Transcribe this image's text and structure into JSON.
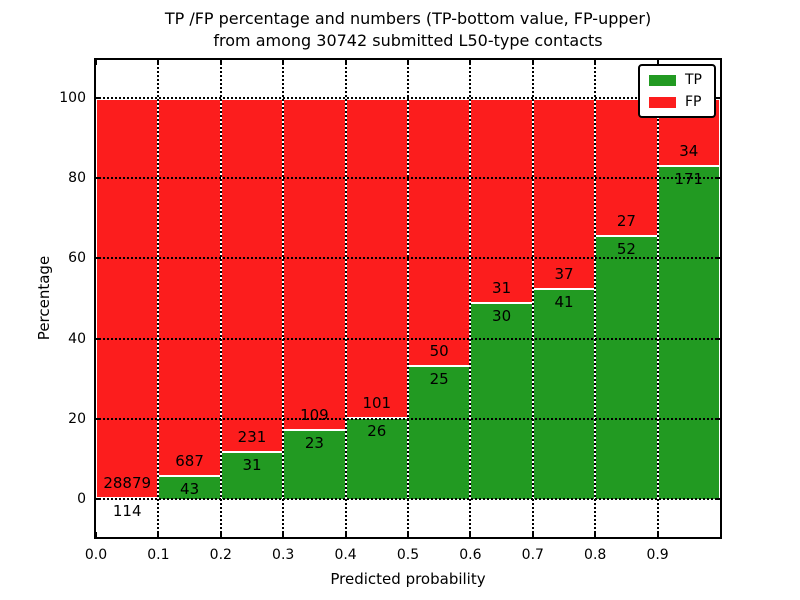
{
  "chart_data": {
    "type": "bar",
    "stacked": true,
    "normalized": "percent",
    "title_line1": "TP /FP percentage and numbers (TP-bottom value, FP-upper)",
    "title_line2": "from among 30742 submitted L50-type contacts",
    "total_submitted_contacts": 30742,
    "xlabel": "Predicted probability",
    "ylabel": "Percentage",
    "xlim": [
      0.0,
      1.0
    ],
    "ylim": [
      -9.5,
      109.5
    ],
    "xticks": [
      "0.0",
      "0.1",
      "0.2",
      "0.3",
      "0.4",
      "0.5",
      "0.6",
      "0.7",
      "0.8",
      "0.9"
    ],
    "yticks": [
      0,
      20,
      40,
      60,
      80,
      100
    ],
    "grid": true,
    "grid_style": "dotted",
    "bin_width": 0.1,
    "categories": [
      "0.0-0.1",
      "0.1-0.2",
      "0.2-0.3",
      "0.3-0.4",
      "0.4-0.5",
      "0.5-0.6",
      "0.6-0.7",
      "0.7-0.8",
      "0.8-0.9",
      "0.9-1.0"
    ],
    "series": [
      {
        "name": "TP",
        "color": "#229a22",
        "values": [
          114,
          43,
          31,
          23,
          26,
          25,
          30,
          41,
          52,
          171
        ]
      },
      {
        "name": "FP",
        "color": "#fc1d1d",
        "values": [
          28879,
          687,
          231,
          109,
          101,
          50,
          31,
          37,
          27,
          34
        ]
      }
    ],
    "tp_percent_of_bin": [
      0.39,
      5.89,
      11.83,
      17.42,
      20.47,
      33.33,
      49.18,
      52.56,
      65.82,
      83.41
    ],
    "legend": {
      "position": "upper right",
      "entries": [
        {
          "label": "TP",
          "color": "#229a22"
        },
        {
          "label": "FP",
          "color": "#fc1d1d"
        }
      ]
    }
  }
}
